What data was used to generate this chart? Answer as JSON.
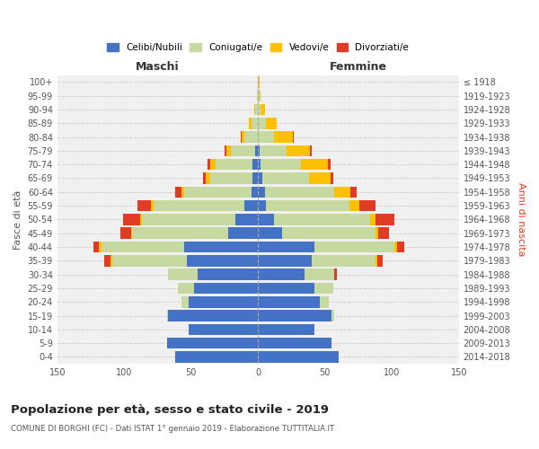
{
  "age_groups": [
    "0-4",
    "5-9",
    "10-14",
    "15-19",
    "20-24",
    "25-29",
    "30-34",
    "35-39",
    "40-44",
    "45-49",
    "50-54",
    "55-59",
    "60-64",
    "65-69",
    "70-74",
    "75-79",
    "80-84",
    "85-89",
    "90-94",
    "95-99",
    "100+"
  ],
  "birth_years": [
    "2014-2018",
    "2009-2013",
    "2004-2008",
    "1999-2003",
    "1994-1998",
    "1989-1993",
    "1984-1988",
    "1979-1983",
    "1974-1978",
    "1969-1973",
    "1964-1968",
    "1959-1963",
    "1954-1958",
    "1949-1953",
    "1944-1948",
    "1939-1943",
    "1934-1938",
    "1929-1933",
    "1924-1928",
    "1919-1923",
    "≤ 1918"
  ],
  "maschi": {
    "celibi": [
      62,
      68,
      52,
      67,
      52,
      48,
      45,
      53,
      55,
      22,
      17,
      10,
      5,
      4,
      4,
      2,
      0,
      0,
      0,
      0,
      0
    ],
    "coniugati": [
      0,
      0,
      0,
      1,
      5,
      12,
      22,
      56,
      62,
      72,
      70,
      68,
      50,
      32,
      28,
      18,
      10,
      5,
      2,
      1,
      0
    ],
    "vedovi": [
      0,
      0,
      0,
      0,
      0,
      0,
      0,
      1,
      2,
      1,
      1,
      2,
      2,
      3,
      4,
      4,
      2,
      2,
      1,
      0,
      0
    ],
    "divorziati": [
      0,
      0,
      0,
      0,
      0,
      0,
      0,
      5,
      4,
      8,
      13,
      10,
      5,
      2,
      2,
      1,
      1,
      0,
      0,
      0,
      0
    ]
  },
  "femmine": {
    "nubili": [
      60,
      55,
      42,
      55,
      46,
      42,
      35,
      40,
      42,
      18,
      12,
      6,
      5,
      3,
      2,
      1,
      0,
      0,
      0,
      0,
      0
    ],
    "coniugate": [
      0,
      0,
      0,
      2,
      7,
      14,
      22,
      48,
      60,
      70,
      72,
      62,
      52,
      35,
      30,
      20,
      12,
      6,
      2,
      1,
      0
    ],
    "vedove": [
      0,
      0,
      0,
      0,
      0,
      0,
      0,
      1,
      2,
      2,
      4,
      8,
      12,
      16,
      20,
      18,
      14,
      8,
      3,
      1,
      1
    ],
    "divorziate": [
      0,
      0,
      0,
      0,
      0,
      0,
      2,
      4,
      5,
      8,
      14,
      12,
      5,
      2,
      2,
      1,
      1,
      0,
      0,
      0,
      0
    ]
  },
  "colors": {
    "celibi_nubili": "#4472c4",
    "coniugati": "#c5d9a0",
    "vedovi": "#ffc000",
    "divorziati": "#e03b24"
  },
  "title": "Popolazione per età, sesso e stato civile - 2019",
  "subtitle": "COMUNE DI BORGHI (FC) - Dati ISTAT 1° gennaio 2019 - Elaborazione TUTTITALIA.IT",
  "xlabel_left": "Maschi",
  "xlabel_right": "Femmine",
  "ylabel_left": "Fasce di età",
  "ylabel_right": "Anni di nascita",
  "xlim": 150,
  "legend_labels": [
    "Celibi/Nubili",
    "Coniugati/e",
    "Vedovi/e",
    "Divorziati/e"
  ],
  "bg_color": "#ffffff",
  "grid_color": "#cccccc"
}
